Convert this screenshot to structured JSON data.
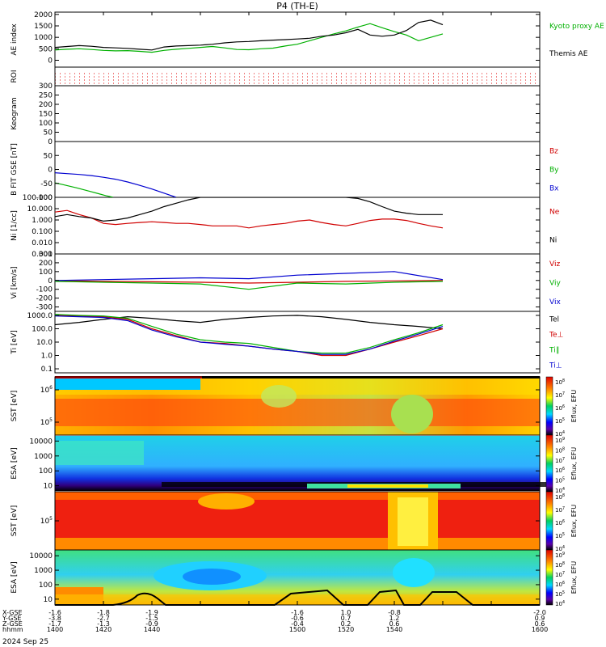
{
  "title": "P4 (TH-E)",
  "date_label": "2024 Sep 25",
  "row_labels": [
    "X-GSE",
    "Y-GSE",
    "Z-GSE",
    "hhmm"
  ],
  "colors": {
    "black": "#000000",
    "red": "#d00000",
    "green": "#00b000",
    "blue": "#0000d0"
  },
  "chart_data": [
    {
      "type": "line",
      "panel": "ae",
      "ylabel": "AE index",
      "ylim": [
        -300,
        2100
      ],
      "yticks": [
        0,
        500,
        1000,
        1500,
        2000
      ],
      "series": [
        {
          "name": "Kyoto proxy AE",
          "color": "#00b000",
          "x": [
            1400,
            1405,
            1410,
            1415,
            1420,
            1425,
            1430,
            1435,
            1440,
            1445,
            1450,
            1455,
            1460,
            1465,
            1470,
            1475,
            1480,
            1485,
            1490,
            1495,
            1500,
            1505,
            1510,
            1515,
            1520,
            1525,
            1530,
            1535,
            1540,
            1545,
            1550,
            1555,
            1560
          ],
          "y": [
            450,
            480,
            500,
            470,
            430,
            410,
            420,
            390,
            350,
            430,
            480,
            520,
            560,
            600,
            540,
            470,
            460,
            500,
            530,
            620,
            700,
            850,
            1000,
            1150,
            1280,
            1450,
            1600,
            1420,
            1250,
            1100,
            850,
            1000,
            1150
          ]
        },
        {
          "name": "Themis AE",
          "color": "#000000",
          "x": [
            1400,
            1405,
            1410,
            1415,
            1420,
            1425,
            1430,
            1435,
            1440,
            1445,
            1450,
            1455,
            1460,
            1465,
            1470,
            1475,
            1480,
            1485,
            1490,
            1495,
            1500,
            1505,
            1510,
            1515,
            1520,
            1525,
            1530,
            1535,
            1540,
            1545,
            1550,
            1555,
            1560
          ],
          "y": [
            560,
            600,
            640,
            610,
            560,
            540,
            520,
            480,
            450,
            580,
            620,
            640,
            660,
            700,
            760,
            800,
            820,
            850,
            880,
            900,
            930,
            960,
            1050,
            1100,
            1200,
            1350,
            1100,
            1050,
            1100,
            1300,
            1650,
            1750,
            1550
          ]
        }
      ]
    },
    {
      "type": "line",
      "panel": "roi",
      "ylabel": "ROI",
      "ylim": [
        0,
        1
      ],
      "series": []
    },
    {
      "type": "heatmap",
      "panel": "keogram",
      "ylabel": "Keogram",
      "ylim": [
        0,
        300
      ],
      "yticks": [
        0,
        50,
        100,
        150,
        200,
        250,
        300
      ]
    },
    {
      "type": "line",
      "panel": "b",
      "ylabel": "B FIT GSE [nT]",
      "ylim": [
        -100,
        100
      ],
      "yticks": [
        -100,
        -50,
        0,
        50
      ],
      "series": [
        {
          "name": "Bz",
          "color": "#d00000",
          "x": [],
          "y": []
        },
        {
          "name": "By",
          "color": "#00b000",
          "x": [
            1400,
            1403,
            1406,
            1409,
            1412,
            1415,
            1418,
            1421,
            1424
          ],
          "y": [
            -48,
            -54,
            -60,
            -66,
            -73,
            -80,
            -87,
            -94,
            -100
          ]
        },
        {
          "name": "Bx",
          "color": "#0000d0",
          "x": [
            1400,
            1405,
            1410,
            1415,
            1420,
            1425,
            1430,
            1435,
            1440,
            1445,
            1450
          ],
          "y": [
            -12,
            -15,
            -18,
            -22,
            -28,
            -35,
            -45,
            -57,
            -70,
            -85,
            -100
          ]
        }
      ]
    },
    {
      "type": "line",
      "panel": "n",
      "ylabel": "Ni [1/cc]",
      "ylog": true,
      "ylim": [
        0.001,
        100
      ],
      "yticks": [
        0.001,
        0.01,
        0.1,
        1,
        10,
        100
      ],
      "yticklabels": [
        "0.001",
        "0.010",
        "0.100",
        "1.000",
        "10.000",
        "100.000"
      ],
      "series": [
        {
          "name": "Ne",
          "color": "#d00000",
          "x": [
            1400,
            1405,
            1410,
            1415,
            1420,
            1425,
            1430,
            1435,
            1440,
            1445,
            1450,
            1455,
            1460,
            1465,
            1470,
            1475,
            1480,
            1485,
            1490,
            1495,
            1500,
            1505,
            1510,
            1515,
            1520,
            1525,
            1530,
            1535,
            1540,
            1545,
            1550,
            1555,
            1560
          ],
          "y": [
            5,
            7,
            3,
            1.5,
            0.5,
            0.4,
            0.5,
            0.6,
            0.7,
            0.6,
            0.5,
            0.5,
            0.4,
            0.3,
            0.3,
            0.3,
            0.2,
            0.3,
            0.4,
            0.5,
            0.8,
            1,
            0.6,
            0.4,
            0.3,
            0.5,
            0.9,
            1.2,
            1.2,
            0.9,
            0.5,
            0.3,
            0.2
          ]
        },
        {
          "name": "Ni",
          "color": "#000000",
          "x": [
            1400,
            1405,
            1410,
            1415,
            1420,
            1425,
            1430,
            1435,
            1440,
            1445,
            1450,
            1455,
            1460,
            1465,
            1470,
            1475,
            1480,
            1485,
            1490,
            1495,
            1500,
            1505,
            1510,
            1515,
            1520,
            1525,
            1530,
            1535,
            1540,
            1545,
            1550,
            1555,
            1560
          ],
          "y": [
            2,
            3,
            2,
            1.5,
            0.8,
            1,
            1.5,
            3,
            6,
            15,
            30,
            60,
            100,
            100,
            100,
            100,
            100,
            100,
            100,
            100,
            100,
            100,
            100,
            100,
            100,
            80,
            40,
            15,
            6,
            4,
            3,
            3,
            3
          ]
        }
      ]
    },
    {
      "type": "line",
      "panel": "v",
      "ylabel": "Vi [km/s]",
      "ylim": [
        -350,
        300
      ],
      "yticks": [
        -300,
        -200,
        -100,
        0,
        100,
        200,
        300
      ],
      "series": [
        {
          "name": "Viz",
          "color": "#d00000",
          "x": [
            1400,
            1420,
            1440,
            1460,
            1480,
            1500,
            1520,
            1540,
            1560
          ],
          "y": [
            0,
            -10,
            -15,
            -20,
            -30,
            -20,
            -10,
            -5,
            0
          ]
        },
        {
          "name": "Viy",
          "color": "#00b000",
          "x": [
            1400,
            1420,
            1440,
            1460,
            1480,
            1500,
            1520,
            1540,
            1560
          ],
          "y": [
            -10,
            -20,
            -30,
            -40,
            -100,
            -30,
            -40,
            -20,
            -10
          ]
        },
        {
          "name": "Vix",
          "color": "#0000d0",
          "x": [
            1400,
            1420,
            1440,
            1460,
            1480,
            1500,
            1520,
            1540,
            1560
          ],
          "y": [
            0,
            10,
            20,
            30,
            20,
            60,
            80,
            100,
            10
          ]
        }
      ]
    },
    {
      "type": "line",
      "panel": "t",
      "ylabel": "Ti [eV]",
      "ylog": true,
      "ylim": [
        0.05,
        2000
      ],
      "yticks": [
        0.1,
        1,
        10,
        100,
        1000
      ],
      "yticklabels": [
        "0.1",
        "1.0",
        "10.0",
        "100.0",
        "1000.0"
      ],
      "series": [
        {
          "name": "Tel",
          "color": "#000000",
          "x": [
            1400,
            1410,
            1420,
            1430,
            1440,
            1450,
            1460,
            1470,
            1480,
            1490,
            1500,
            1510,
            1520,
            1530,
            1540,
            1550,
            1560
          ],
          "y": [
            200,
            300,
            500,
            800,
            600,
            400,
            300,
            500,
            700,
            900,
            1000,
            800,
            500,
            300,
            200,
            150,
            100
          ]
        },
        {
          "name": "Te⊥",
          "color": "#d00000",
          "x": [
            1400,
            1410,
            1420,
            1430,
            1440,
            1450,
            1460,
            1470,
            1480,
            1490,
            1500,
            1510,
            1520,
            1530,
            1540,
            1550,
            1560
          ],
          "y": [
            1000,
            900,
            800,
            500,
            100,
            30,
            10,
            8,
            5,
            3,
            2,
            1,
            1,
            3,
            10,
            30,
            100
          ]
        },
        {
          "name": "Ti∥",
          "color": "#00b000",
          "x": [
            1400,
            1410,
            1420,
            1430,
            1440,
            1450,
            1460,
            1470,
            1480,
            1490,
            1500,
            1510,
            1520,
            1530,
            1540,
            1550,
            1560
          ],
          "y": [
            1200,
            1000,
            900,
            600,
            150,
            40,
            15,
            10,
            8,
            4,
            2,
            1.5,
            1.5,
            4,
            15,
            50,
            200
          ]
        },
        {
          "name": "Ti⊥",
          "color": "#0000d0",
          "x": [
            1400,
            1410,
            1420,
            1430,
            1440,
            1450,
            1460,
            1470,
            1480,
            1490,
            1500,
            1510,
            1520,
            1530,
            1540,
            1550,
            1560
          ],
          "y": [
            900,
            800,
            700,
            400,
            80,
            25,
            10,
            7,
            5,
            3,
            2,
            1.2,
            1.2,
            3,
            12,
            40,
            150
          ]
        }
      ]
    },
    {
      "type": "heatmap",
      "panel": "sst_e",
      "ylabel": "SST [eV]",
      "ylog": true,
      "yticks": [
        100000,
        1000000
      ],
      "yticklabels": [
        "10^5",
        "10^6"
      ],
      "colorbar_label": "Eflux, EFU",
      "colorbar_ticks": [
        "10^8",
        "10^7",
        "10^6",
        "10^5",
        "10^4"
      ]
    },
    {
      "type": "heatmap",
      "panel": "esa_e",
      "ylabel": "ESA [eV]",
      "ylog": true,
      "yticks": [
        10,
        100,
        1000,
        10000
      ],
      "yticklabels": [
        "10",
        "100",
        "1000",
        "10000"
      ],
      "colorbar_label": "Eflux, EFU",
      "colorbar_ticks": [
        "10^9",
        "10^8",
        "10^7",
        "10^6",
        "10^5",
        "10^4"
      ]
    },
    {
      "type": "heatmap",
      "panel": "sst_i",
      "ylabel": "SST [eV]",
      "ylog": true,
      "yticks": [
        100000
      ],
      "yticklabels": [
        "10^5"
      ],
      "colorbar_label": "Eflux, EFU",
      "colorbar_ticks": [
        "10^8",
        "10^7",
        "10^6",
        "10^5",
        "10^4"
      ]
    },
    {
      "type": "heatmap",
      "panel": "esa_i",
      "ylabel": "ESA [eV]",
      "ylog": true,
      "yticks": [
        10,
        100,
        1000,
        10000
      ],
      "yticklabels": [
        "10",
        "100",
        "1000",
        "10000"
      ],
      "colorbar_label": "Eflux, EFU",
      "colorbar_ticks": [
        "10^9",
        "10^8",
        "10^7",
        "10^6",
        "10^5",
        "10^4"
      ]
    }
  ],
  "x_axis": {
    "range": [
      1400,
      1600
    ],
    "tick_values": [
      1400,
      1420,
      1440,
      1460,
      1480,
      1500,
      1520,
      1540,
      1560,
      1580,
      1600
    ],
    "major_ticks": [
      {
        "x": 1400,
        "xgse": "-1.6",
        "ygse": "-3.8",
        "zgse": "-1.7",
        "hhmm": "1400"
      },
      {
        "x": 1420,
        "xgse": "-1.8",
        "ygse": "-2.7",
        "zgse": "-1.3",
        "hhmm": "1420"
      },
      {
        "x": 1440,
        "xgse": "-1.9",
        "ygse": "-1.5",
        "zgse": "-0.9",
        "hhmm": "1440"
      },
      {
        "x": 1500,
        "xgse": "-1.6",
        "ygse": "-0.6",
        "zgse": "-0.4",
        "hhmm": "1500"
      },
      {
        "x": 1520,
        "xgse": "1.0",
        "ygse": "0.7",
        "zgse": "0.2",
        "hhmm": "1520"
      },
      {
        "x": 1540,
        "xgse": "-0.8",
        "ygse": "1.2",
        "zgse": "0.6",
        "hhmm": "1540"
      },
      {
        "x": 1600,
        "xgse": "-2.0",
        "ygse": "0.9",
        "zgse": "0.6",
        "hhmm": "1600"
      }
    ]
  }
}
